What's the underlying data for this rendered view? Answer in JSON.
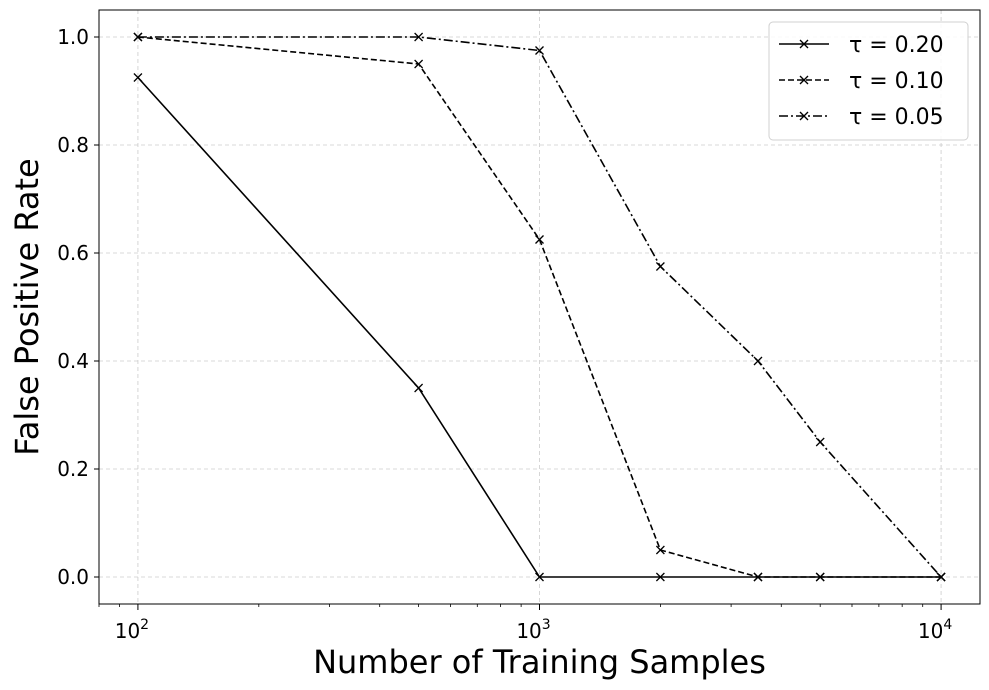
{
  "chart_data": {
    "type": "line",
    "title": "",
    "xlabel": "Number of Training Samples",
    "ylabel": "False Positive Rate",
    "xscale": "log",
    "xlim": [
      80,
      12500
    ],
    "ylim": [
      -0.05,
      1.05
    ],
    "grid": true,
    "legend_position": "top-right",
    "x_ticks": [
      {
        "value": 100,
        "base": "10",
        "exp": "2"
      },
      {
        "value": 1000,
        "base": "10",
        "exp": "3"
      },
      {
        "value": 10000,
        "base": "10",
        "exp": "4"
      }
    ],
    "y_ticks": [
      {
        "value": 0.0,
        "label": "0.0"
      },
      {
        "value": 0.2,
        "label": "0.2"
      },
      {
        "value": 0.4,
        "label": "0.4"
      },
      {
        "value": 0.6,
        "label": "0.6"
      },
      {
        "value": 0.8,
        "label": "0.8"
      },
      {
        "value": 1.0,
        "label": "1.0"
      }
    ],
    "series": [
      {
        "name": "τ = 0.20",
        "style": "solid",
        "color": "#000000",
        "x": [
          100,
          500,
          1000,
          2000,
          3500,
          5000,
          10000
        ],
        "y": [
          0.925,
          0.35,
          0.0,
          0.0,
          0.0,
          0.0,
          0.0
        ]
      },
      {
        "name": "τ = 0.10",
        "style": "dashed",
        "color": "#000000",
        "x": [
          100,
          500,
          1000,
          2000,
          3500,
          5000,
          10000
        ],
        "y": [
          1.0,
          0.95,
          0.625,
          0.05,
          0.0,
          0.0,
          0.0
        ]
      },
      {
        "name": "τ = 0.05",
        "style": "dashdot",
        "color": "#000000",
        "x": [
          100,
          500,
          1000,
          2000,
          3500,
          5000,
          10000
        ],
        "y": [
          1.0,
          1.0,
          0.975,
          0.575,
          0.4,
          0.25,
          0.0
        ]
      }
    ]
  }
}
